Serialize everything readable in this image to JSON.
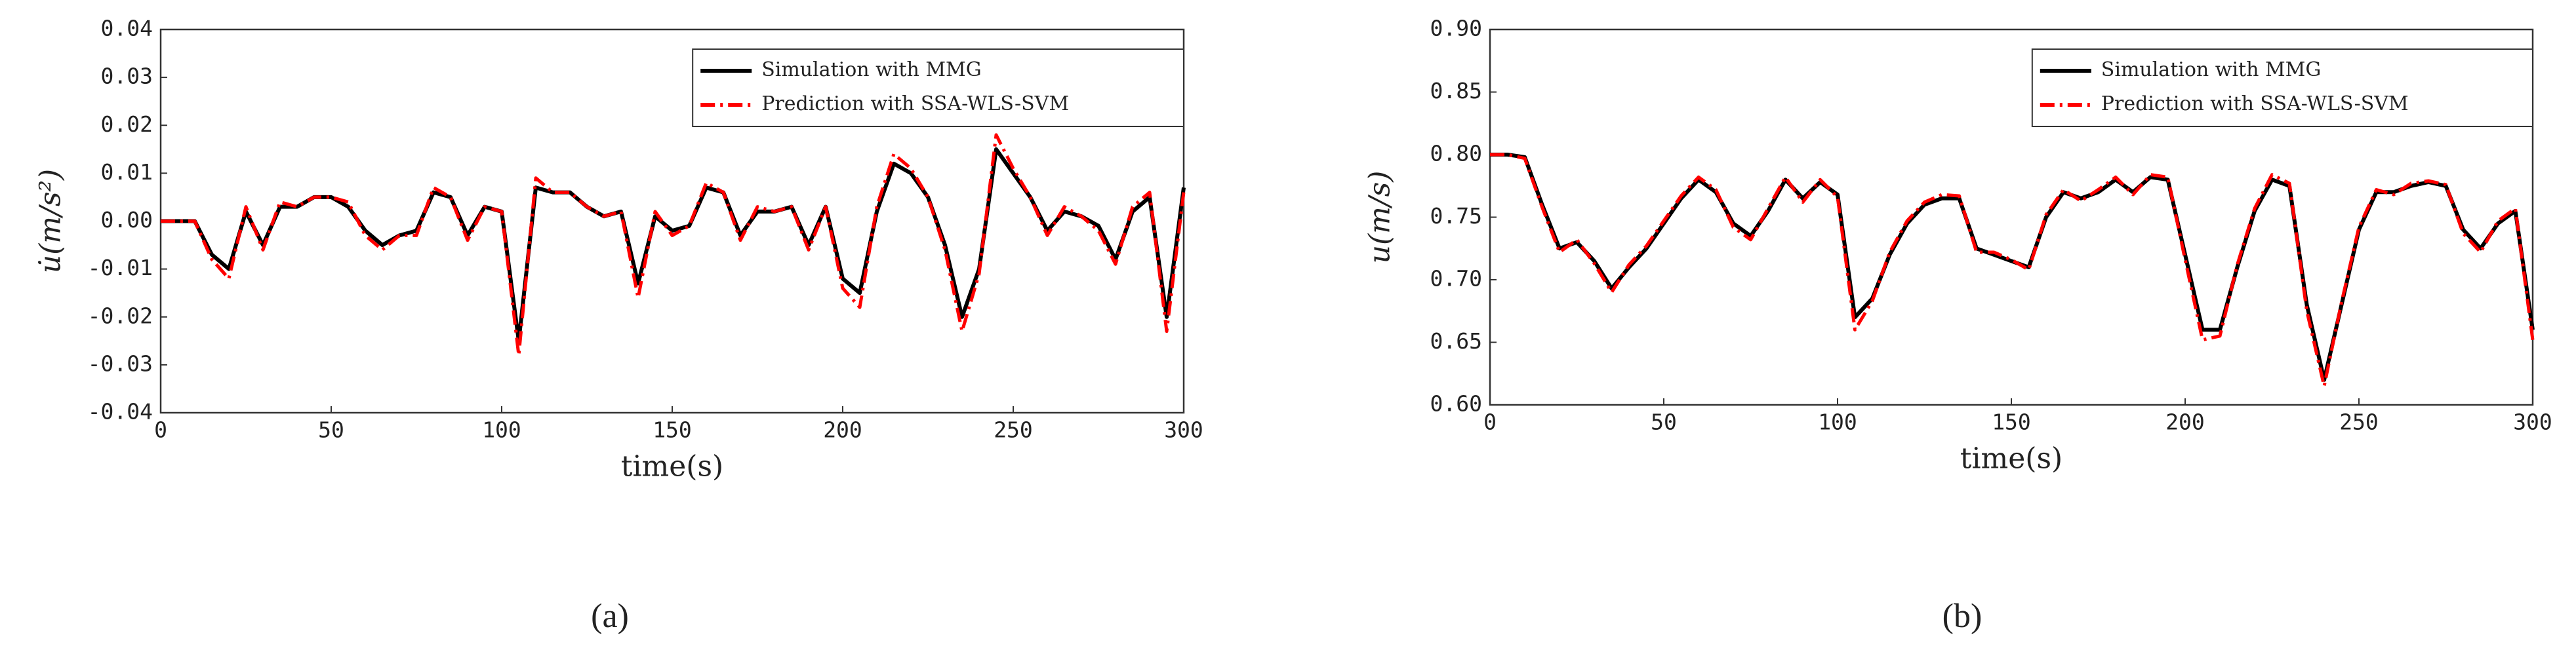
{
  "chart_data": [
    {
      "type": "line",
      "ylabel": "u̇(m/s²)",
      "xlabel": "time(s)",
      "caption": "(a)",
      "xlim": [
        0,
        300
      ],
      "xticks": [
        0,
        50,
        100,
        150,
        200,
        250,
        300
      ],
      "ylim": [
        -0.04,
        0.04
      ],
      "yticks": [
        -0.04,
        -0.03,
        -0.02,
        -0.01,
        {
          "value": 0,
          "label": "0.00"
        },
        0.01,
        0.02,
        0.03,
        0.04
      ],
      "legend": "upper right",
      "x": [
        0,
        5,
        10,
        15,
        20,
        25,
        30,
        35,
        40,
        45,
        50,
        55,
        60,
        65,
        70,
        75,
        80,
        85,
        90,
        95,
        100,
        105,
        110,
        115,
        120,
        125,
        130,
        135,
        140,
        145,
        150,
        155,
        160,
        165,
        170,
        175,
        180,
        185,
        190,
        195,
        200,
        205,
        210,
        215,
        220,
        225,
        230,
        235,
        240,
        245,
        250,
        255,
        260,
        265,
        270,
        275,
        280,
        285,
        290,
        295,
        300
      ],
      "series": [
        {
          "name": "Simulation with MMG",
          "color": "#000000",
          "dash": "solid",
          "values": [
            0,
            0,
            0,
            -0.007,
            -0.01,
            0.002,
            -0.005,
            0.003,
            0.003,
            0.005,
            0.005,
            0.003,
            -0.002,
            -0.005,
            -0.003,
            -0.002,
            0.006,
            0.005,
            -0.003,
            0.003,
            0.002,
            -0.025,
            0.007,
            0.006,
            0.006,
            0.003,
            0.001,
            0.002,
            -0.013,
            0.001,
            -0.002,
            -0.001,
            0.007,
            0.006,
            -0.003,
            0.002,
            0.002,
            0.003,
            -0.005,
            0.003,
            -0.012,
            -0.015,
            0.002,
            0.012,
            0.01,
            0.005,
            -0.005,
            -0.02,
            -0.01,
            0.015,
            0.01,
            0.005,
            -0.002,
            0.002,
            0.001,
            -0.001,
            -0.008,
            0.002,
            0.005,
            -0.02,
            0.007
          ]
        },
        {
          "name": "Prediction with SSA-WLS-SVM",
          "color": "#ff0000",
          "dash": "dashdot",
          "values": [
            0,
            0,
            0,
            -0.008,
            -0.012,
            0.003,
            -0.006,
            0.004,
            0.003,
            0.005,
            0.005,
            0.004,
            -0.003,
            -0.006,
            -0.003,
            -0.003,
            0.007,
            0.005,
            -0.004,
            0.003,
            0.002,
            -0.028,
            0.009,
            0.006,
            0.006,
            0.003,
            0.001,
            0.002,
            -0.016,
            0.002,
            -0.003,
            -0.001,
            0.008,
            0.006,
            -0.004,
            0.003,
            0.002,
            0.003,
            -0.006,
            0.003,
            -0.014,
            -0.018,
            0.003,
            0.014,
            0.011,
            0.005,
            -0.006,
            -0.023,
            -0.011,
            0.018,
            0.011,
            0.005,
            -0.003,
            0.003,
            0.001,
            -0.002,
            -0.009,
            0.003,
            0.006,
            -0.023,
            0.006
          ]
        }
      ]
    },
    {
      "type": "line",
      "ylabel": "u(m/s)",
      "xlabel": "time(s)",
      "caption": "(b)",
      "xlim": [
        0,
        300
      ],
      "xticks": [
        0,
        50,
        100,
        150,
        200,
        250,
        300
      ],
      "ylim": [
        0.6,
        0.9
      ],
      "yticks": [
        {
          "value": 0.6,
          "label": "0.60"
        },
        0.65,
        {
          "value": 0.7,
          "label": "0.70"
        },
        0.75,
        {
          "value": 0.8,
          "label": "0.80"
        },
        0.85,
        {
          "value": 0.9,
          "label": "0.90"
        }
      ],
      "legend": "upper right",
      "x": [
        0,
        5,
        10,
        15,
        20,
        25,
        30,
        35,
        40,
        45,
        50,
        55,
        60,
        65,
        70,
        75,
        80,
        85,
        90,
        95,
        100,
        105,
        110,
        115,
        120,
        125,
        130,
        135,
        140,
        145,
        150,
        155,
        160,
        165,
        170,
        175,
        180,
        185,
        190,
        195,
        200,
        205,
        210,
        215,
        220,
        225,
        230,
        235,
        240,
        245,
        250,
        255,
        260,
        265,
        270,
        275,
        280,
        285,
        290,
        295,
        300
      ],
      "series": [
        {
          "name": "Simulation with MMG",
          "color": "#000000",
          "dash": "solid",
          "values": [
            0.8,
            0.8,
            0.798,
            0.76,
            0.725,
            0.73,
            0.715,
            0.693,
            0.71,
            0.725,
            0.745,
            0.765,
            0.78,
            0.77,
            0.745,
            0.735,
            0.755,
            0.78,
            0.765,
            0.778,
            0.768,
            0.67,
            0.685,
            0.72,
            0.745,
            0.76,
            0.765,
            0.765,
            0.725,
            0.72,
            0.715,
            0.71,
            0.75,
            0.77,
            0.765,
            0.77,
            0.78,
            0.77,
            0.782,
            0.78,
            0.72,
            0.66,
            0.66,
            0.71,
            0.755,
            0.78,
            0.775,
            0.68,
            0.62,
            0.68,
            0.74,
            0.77,
            0.77,
            0.775,
            0.778,
            0.775,
            0.74,
            0.725,
            0.745,
            0.755,
            0.66
          ]
        },
        {
          "name": "Prediction with SSA-WLS-SVM",
          "color": "#ff0000",
          "dash": "dashdot",
          "values": [
            0.8,
            0.8,
            0.797,
            0.758,
            0.722,
            0.732,
            0.713,
            0.69,
            0.712,
            0.727,
            0.747,
            0.767,
            0.782,
            0.772,
            0.742,
            0.732,
            0.757,
            0.782,
            0.762,
            0.78,
            0.766,
            0.66,
            0.683,
            0.722,
            0.747,
            0.762,
            0.768,
            0.767,
            0.722,
            0.722,
            0.716,
            0.708,
            0.752,
            0.772,
            0.763,
            0.772,
            0.782,
            0.768,
            0.784,
            0.782,
            0.716,
            0.652,
            0.655,
            0.712,
            0.757,
            0.784,
            0.777,
            0.675,
            0.615,
            0.682,
            0.742,
            0.772,
            0.768,
            0.777,
            0.779,
            0.776,
            0.737,
            0.722,
            0.747,
            0.757,
            0.652
          ]
        }
      ]
    }
  ]
}
